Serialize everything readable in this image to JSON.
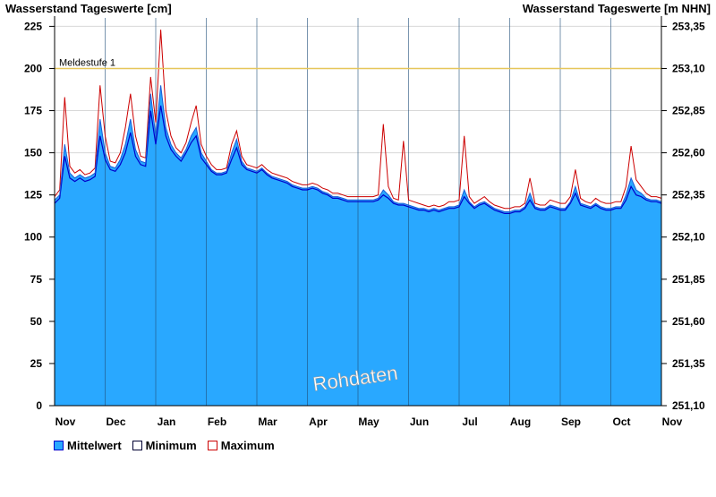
{
  "chart_data": {
    "type": "area",
    "title_left": "Wasserstand Tageswerte [cm]",
    "title_right": "Wasserstand Tageswerte [m NHN]",
    "ylim": [
      0,
      230
    ],
    "ylim_right": [
      251.1,
      253.4
    ],
    "y_ticks": [
      "0",
      "25",
      "50",
      "75",
      "100",
      "125",
      "150",
      "175",
      "200",
      "225"
    ],
    "y_ticks_right": [
      "251,10",
      "251,35",
      "251,60",
      "251,85",
      "252,10",
      "252,35",
      "252,60",
      "252,85",
      "253,10",
      "253,35"
    ],
    "months": [
      "Nov",
      "Dec",
      "Jan",
      "Feb",
      "Mar",
      "Apr",
      "May",
      "Jun",
      "Jul",
      "Aug",
      "Sep",
      "Oct",
      "Nov"
    ],
    "grid": true,
    "threshold": {
      "label": "Meldestufe 1",
      "value": 200,
      "color": "#e6c65a"
    },
    "watermark": "Rohdaten",
    "colors": {
      "mean": "#29a8ff",
      "minimum": "#0000cc",
      "maximum": "#cc0000"
    },
    "series": [
      {
        "name": "Mittelwert",
        "values": [
          122,
          125,
          155,
          138,
          135,
          137,
          135,
          136,
          138,
          170,
          150,
          142,
          141,
          146,
          155,
          170,
          152,
          145,
          144,
          185,
          160,
          190,
          165,
          155,
          150,
          147,
          152,
          160,
          165,
          150,
          145,
          140,
          138,
          138,
          139,
          150,
          158,
          145,
          141,
          140,
          139,
          141,
          138,
          136,
          135,
          134,
          133,
          131,
          130,
          129,
          129,
          130,
          129,
          127,
          126,
          124,
          124,
          123,
          122,
          122,
          122,
          122,
          122,
          122,
          123,
          128,
          125,
          121,
          120,
          120,
          119,
          118,
          117,
          117,
          116,
          117,
          116,
          117,
          118,
          118,
          119,
          128,
          121,
          118,
          120,
          121,
          119,
          117,
          116,
          115,
          115,
          116,
          116,
          118,
          126,
          118,
          117,
          117,
          119,
          118,
          117,
          117,
          121,
          130,
          120,
          119,
          118,
          120,
          118,
          117,
          117,
          118,
          118,
          125,
          135,
          128,
          126,
          123,
          122,
          122,
          121
        ]
      },
      {
        "name": "Minimum",
        "values": [
          120,
          123,
          148,
          135,
          133,
          135,
          133,
          134,
          136,
          160,
          146,
          140,
          139,
          143,
          150,
          162,
          148,
          143,
          142,
          175,
          155,
          178,
          160,
          152,
          148,
          145,
          150,
          156,
          160,
          147,
          143,
          139,
          137,
          137,
          138,
          146,
          153,
          143,
          140,
          139,
          138,
          140,
          137,
          135,
          134,
          133,
          132,
          130,
          129,
          128,
          128,
          129,
          128,
          126,
          125,
          123,
          123,
          122,
          121,
          121,
          121,
          121,
          121,
          121,
          122,
          125,
          123,
          120,
          119,
          119,
          118,
          117,
          116,
          116,
          115,
          116,
          115,
          116,
          117,
          117,
          118,
          124,
          120,
          117,
          119,
          120,
          118,
          116,
          115,
          114,
          114,
          115,
          115,
          117,
          122,
          117,
          116,
          116,
          118,
          117,
          116,
          116,
          120,
          126,
          119,
          118,
          117,
          119,
          117,
          116,
          116,
          117,
          117,
          122,
          130,
          125,
          124,
          122,
          121,
          121,
          120
        ]
      },
      {
        "name": "Maximum",
        "values": [
          124,
          128,
          183,
          142,
          138,
          140,
          137,
          138,
          141,
          190,
          160,
          145,
          144,
          150,
          165,
          185,
          160,
          148,
          147,
          195,
          168,
          223,
          175,
          160,
          153,
          150,
          156,
          168,
          178,
          155,
          148,
          143,
          140,
          140,
          141,
          155,
          163,
          148,
          143,
          142,
          141,
          143,
          140,
          138,
          137,
          136,
          135,
          133,
          132,
          131,
          131,
          132,
          131,
          129,
          128,
          126,
          126,
          125,
          124,
          124,
          124,
          124,
          124,
          124,
          125,
          167,
          130,
          123,
          122,
          157,
          122,
          121,
          120,
          119,
          118,
          119,
          118,
          119,
          121,
          121,
          122,
          160,
          124,
          120,
          122,
          124,
          121,
          119,
          118,
          117,
          117,
          118,
          118,
          120,
          135,
          120,
          119,
          119,
          122,
          121,
          120,
          120,
          124,
          140,
          123,
          121,
          120,
          123,
          121,
          120,
          120,
          121,
          121,
          130,
          154,
          134,
          130,
          126,
          124,
          124,
          123
        ]
      }
    ]
  },
  "legend": {
    "mean_label": "Mittelwert",
    "min_label": "Minimum",
    "max_label": "Maximum"
  }
}
